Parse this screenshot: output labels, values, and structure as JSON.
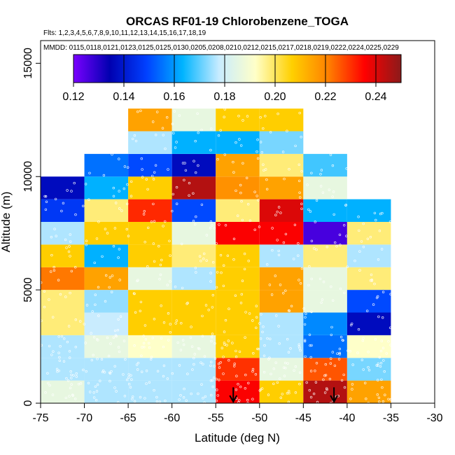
{
  "chart_data": {
    "type": "heatmap",
    "title": "ORCAS RF01-19 Chlorobenzene_TOGA",
    "flights_text": "Flts: 1,2,3,4,5,6,7,8,9,10,11,12,13,14,15,16,17,18,19",
    "mmdd_text": "MMDD: 0115,0118,0121,0123,0125,0125,0130,0205,0208,0210,0212,0215,0217,0218,0219,0222,0224,0225,0229",
    "xlabel": "Latitude (deg N)",
    "ylabel": "Altitude (m)",
    "xlim": [
      -75,
      -30
    ],
    "ylim": [
      0,
      16000
    ],
    "x_ticks": [
      -75,
      -70,
      -65,
      -60,
      -55,
      -50,
      -45,
      -40,
      -35,
      -30
    ],
    "y_ticks": [
      0,
      5000,
      10000,
      15000
    ],
    "x_tick_labels": [
      "-75",
      "-70",
      "-65",
      "-60",
      "-55",
      "-50",
      "-45",
      "-40",
      "-35",
      "-30"
    ],
    "y_tick_labels": [
      "0",
      "5000",
      "10000",
      "15000"
    ],
    "colorbar": {
      "min": 0.12,
      "max": 0.25,
      "ticks": [
        0.12,
        0.14,
        0.16,
        0.18,
        0.2,
        0.22,
        0.24
      ],
      "tick_labels": [
        "0.12",
        "0.14",
        "0.16",
        "0.18",
        "0.20",
        "0.22",
        "0.24"
      ],
      "colors": [
        "#7a00ff",
        "#0000b0",
        "#0040ff",
        "#00b4ff",
        "#c8ecff",
        "#ffffc8",
        "#ffd000",
        "#ff8000",
        "#ff0000",
        "#8b1a1a"
      ]
    },
    "lat_bin_starts": [
      -75,
      -70,
      -65,
      -60,
      -55,
      -50,
      -45,
      -40,
      -35
    ],
    "lat_bin_width": 5,
    "alt_bin_width": 1000,
    "cells": [
      {
        "lat": -75,
        "alt": 0,
        "value": 0.186
      },
      {
        "lat": -75,
        "alt": 1000,
        "value": 0.176
      },
      {
        "lat": -75,
        "alt": 2000,
        "value": 0.176
      },
      {
        "lat": -75,
        "alt": 3000,
        "value": 0.198
      },
      {
        "lat": -75,
        "alt": 4000,
        "value": 0.198
      },
      {
        "lat": -75,
        "alt": 5000,
        "value": 0.222
      },
      {
        "lat": -75,
        "alt": 6000,
        "value": 0.207
      },
      {
        "lat": -75,
        "alt": 7000,
        "value": 0.176
      },
      {
        "lat": -75,
        "alt": 8000,
        "value": 0.147
      },
      {
        "lat": -75,
        "alt": 9000,
        "value": 0.137
      },
      {
        "lat": -70,
        "alt": 0,
        "value": 0.176
      },
      {
        "lat": -70,
        "alt": 1000,
        "value": 0.176
      },
      {
        "lat": -70,
        "alt": 2000,
        "value": 0.186
      },
      {
        "lat": -70,
        "alt": 3000,
        "value": 0.178
      },
      {
        "lat": -70,
        "alt": 4000,
        "value": 0.174
      },
      {
        "lat": -70,
        "alt": 5000,
        "value": 0.215
      },
      {
        "lat": -70,
        "alt": 6000,
        "value": 0.163
      },
      {
        "lat": -70,
        "alt": 7000,
        "value": 0.207
      },
      {
        "lat": -70,
        "alt": 8000,
        "value": 0.198
      },
      {
        "lat": -70,
        "alt": 9000,
        "value": 0.163
      },
      {
        "lat": -70,
        "alt": 10000,
        "value": 0.155
      },
      {
        "lat": -65,
        "alt": 0,
        "value": 0.176
      },
      {
        "lat": -65,
        "alt": 1000,
        "value": 0.176
      },
      {
        "lat": -65,
        "alt": 2000,
        "value": 0.192
      },
      {
        "lat": -65,
        "alt": 3000,
        "value": 0.207
      },
      {
        "lat": -65,
        "alt": 4000,
        "value": 0.207
      },
      {
        "lat": -65,
        "alt": 5000,
        "value": 0.186
      },
      {
        "lat": -65,
        "alt": 6000,
        "value": 0.207
      },
      {
        "lat": -65,
        "alt": 7000,
        "value": 0.207
      },
      {
        "lat": -65,
        "alt": 8000,
        "value": 0.231
      },
      {
        "lat": -65,
        "alt": 9000,
        "value": 0.207
      },
      {
        "lat": -65,
        "alt": 10000,
        "value": 0.15
      },
      {
        "lat": -65,
        "alt": 11000,
        "value": 0.176
      },
      {
        "lat": -65,
        "alt": 12000,
        "value": 0.215
      },
      {
        "lat": -60,
        "alt": 0,
        "value": 0.176
      },
      {
        "lat": -60,
        "alt": 1000,
        "value": 0.176
      },
      {
        "lat": -60,
        "alt": 2000,
        "value": 0.186
      },
      {
        "lat": -60,
        "alt": 3000,
        "value": 0.207
      },
      {
        "lat": -60,
        "alt": 4000,
        "value": 0.207
      },
      {
        "lat": -60,
        "alt": 5000,
        "value": 0.176
      },
      {
        "lat": -60,
        "alt": 6000,
        "value": 0.198
      },
      {
        "lat": -60,
        "alt": 7000,
        "value": 0.186
      },
      {
        "lat": -60,
        "alt": 8000,
        "value": 0.15
      },
      {
        "lat": -60,
        "alt": 9000,
        "value": 0.245
      },
      {
        "lat": -60,
        "alt": 10000,
        "value": 0.137
      },
      {
        "lat": -60,
        "alt": 11000,
        "value": 0.163
      },
      {
        "lat": -60,
        "alt": 12000,
        "value": 0.186
      },
      {
        "lat": -55,
        "alt": 0,
        "value": 0.236
      },
      {
        "lat": -55,
        "alt": 1000,
        "value": 0.23
      },
      {
        "lat": -55,
        "alt": 2000,
        "value": 0.207
      },
      {
        "lat": -55,
        "alt": 3000,
        "value": 0.207
      },
      {
        "lat": -55,
        "alt": 4000,
        "value": 0.207
      },
      {
        "lat": -55,
        "alt": 5000,
        "value": 0.207
      },
      {
        "lat": -55,
        "alt": 6000,
        "value": 0.207
      },
      {
        "lat": -55,
        "alt": 7000,
        "value": 0.236
      },
      {
        "lat": -55,
        "alt": 8000,
        "value": 0.198
      },
      {
        "lat": -55,
        "alt": 9000,
        "value": 0.218
      },
      {
        "lat": -55,
        "alt": 10000,
        "value": 0.215
      },
      {
        "lat": -55,
        "alt": 11000,
        "value": 0.163
      },
      {
        "lat": -55,
        "alt": 12000,
        "value": 0.207
      },
      {
        "lat": -50,
        "alt": 0,
        "value": 0.207
      },
      {
        "lat": -50,
        "alt": 1000,
        "value": 0.186
      },
      {
        "lat": -50,
        "alt": 2000,
        "value": 0.176
      },
      {
        "lat": -50,
        "alt": 3000,
        "value": 0.176
      },
      {
        "lat": -50,
        "alt": 4000,
        "value": 0.215
      },
      {
        "lat": -50,
        "alt": 5000,
        "value": 0.215
      },
      {
        "lat": -50,
        "alt": 6000,
        "value": 0.176
      },
      {
        "lat": -50,
        "alt": 7000,
        "value": 0.236
      },
      {
        "lat": -50,
        "alt": 8000,
        "value": 0.24
      },
      {
        "lat": -50,
        "alt": 9000,
        "value": 0.215
      },
      {
        "lat": -50,
        "alt": 10000,
        "value": 0.198
      },
      {
        "lat": -50,
        "alt": 11000,
        "value": 0.172
      },
      {
        "lat": -50,
        "alt": 12000,
        "value": 0.207
      },
      {
        "lat": -45,
        "alt": 0,
        "value": 0.245
      },
      {
        "lat": -45,
        "alt": 1000,
        "value": 0.226
      },
      {
        "lat": -45,
        "alt": 2000,
        "value": 0.155
      },
      {
        "lat": -45,
        "alt": 3000,
        "value": 0.158
      },
      {
        "lat": -45,
        "alt": 4000,
        "value": 0.186
      },
      {
        "lat": -45,
        "alt": 5000,
        "value": 0.186
      },
      {
        "lat": -45,
        "alt": 6000,
        "value": 0.198
      },
      {
        "lat": -45,
        "alt": 7000,
        "value": 0.126
      },
      {
        "lat": -45,
        "alt": 8000,
        "value": 0.163
      },
      {
        "lat": -45,
        "alt": 9000,
        "value": 0.186
      },
      {
        "lat": -45,
        "alt": 10000,
        "value": 0.168
      },
      {
        "lat": -40,
        "alt": 0,
        "value": 0.215
      },
      {
        "lat": -40,
        "alt": 1000,
        "value": 0.172
      },
      {
        "lat": -40,
        "alt": 2000,
        "value": 0.192
      },
      {
        "lat": -40,
        "alt": 3000,
        "value": 0.137
      },
      {
        "lat": -40,
        "alt": 4000,
        "value": 0.15
      },
      {
        "lat": -40,
        "alt": 5000,
        "value": 0.198
      },
      {
        "lat": -40,
        "alt": 6000,
        "value": 0.176
      },
      {
        "lat": -40,
        "alt": 7000,
        "value": 0.198
      },
      {
        "lat": -40,
        "alt": 8000,
        "value": 0.163
      }
    ],
    "arrow_latitudes": [
      -53,
      -41.5
    ],
    "arrow_alt_top": 700
  }
}
